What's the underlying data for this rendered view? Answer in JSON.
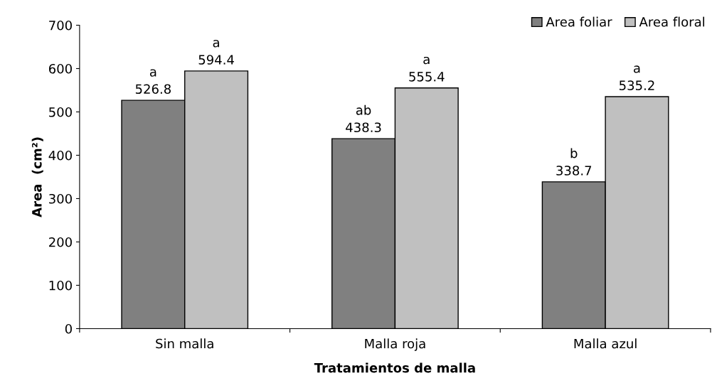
{
  "chart_data": {
    "type": "bar",
    "xlabel": "Tratamientos de malla",
    "ylabel": "Area  (cm²)",
    "categories": [
      "Sin malla",
      "Malla roja",
      "Malla azul"
    ],
    "series": [
      {
        "name": "Area foliar",
        "color": "#808080",
        "values": [
          526.8,
          438.3,
          338.7
        ],
        "value_labels": [
          "a\n526.8",
          "ab\n438.3",
          "b\n338.7"
        ]
      },
      {
        "name": "Area floral",
        "color": "#c0c0c0",
        "values": [
          594.4,
          555.4,
          535.2
        ],
        "value_labels": [
          "a\n594.4",
          "a\n555.4",
          "a\n535.2"
        ]
      }
    ],
    "ylim": [
      0,
      700
    ],
    "yticks": [
      0,
      100,
      200,
      300,
      400,
      500,
      600,
      700
    ],
    "grid": false,
    "legend": "top right"
  }
}
